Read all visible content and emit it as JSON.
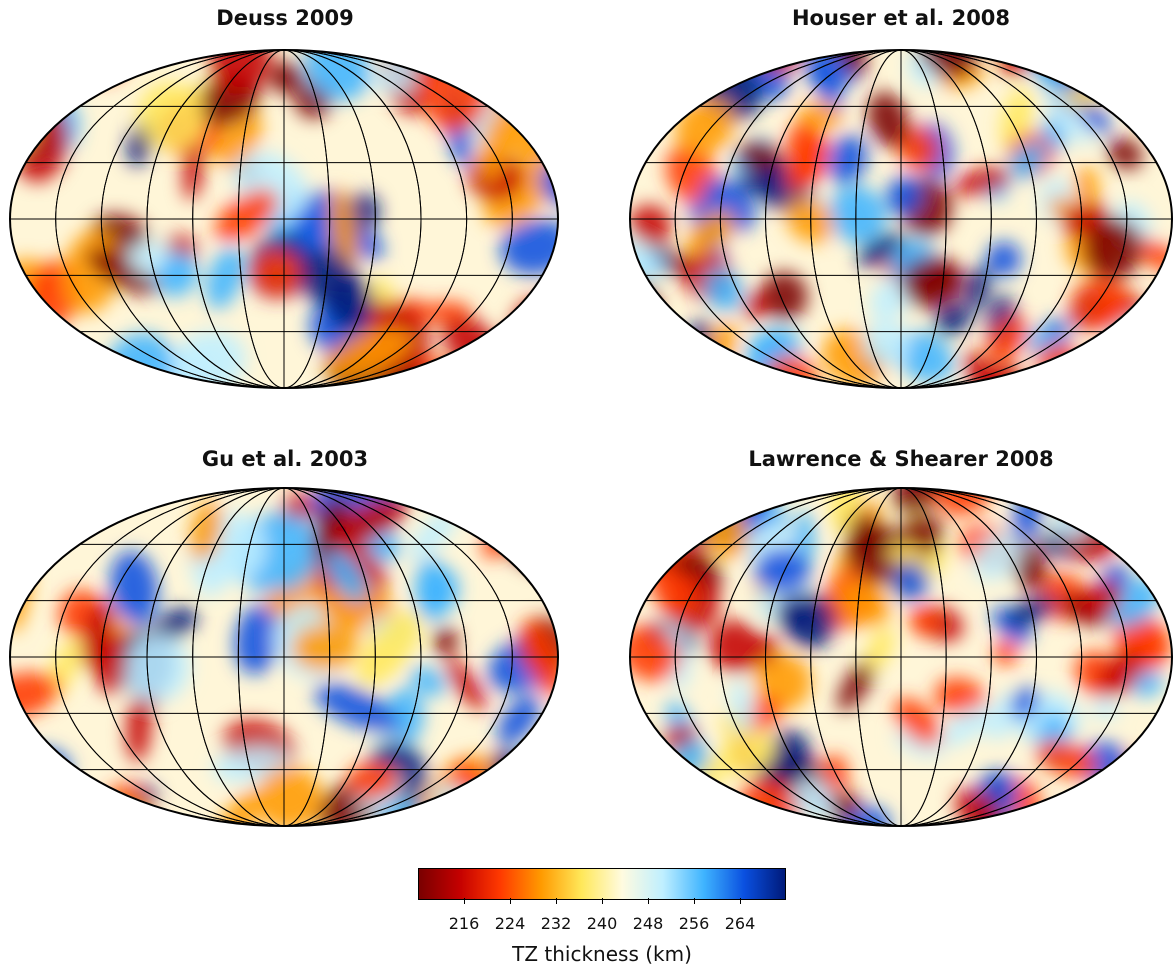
{
  "panels": [
    {
      "title": "Deuss 2009",
      "seed": 11
    },
    {
      "title": "Houser et al. 2008",
      "seed": 23
    },
    {
      "title": "Gu et al. 2003",
      "seed": 37
    },
    {
      "title": "Lawrence & Shearer 2008",
      "seed": 53
    }
  ],
  "colorbar": {
    "label": "TZ thickness (km)",
    "ticks": [
      "216",
      "224",
      "232",
      "240",
      "248",
      "256",
      "264"
    ],
    "range": [
      208,
      272
    ],
    "colors": [
      "#7a0000",
      "#c40000",
      "#ff3a00",
      "#ff9a00",
      "#ffe85a",
      "#fffbe0",
      "#bfefff",
      "#3fb4ff",
      "#0a50e0",
      "#001a7a"
    ]
  }
}
